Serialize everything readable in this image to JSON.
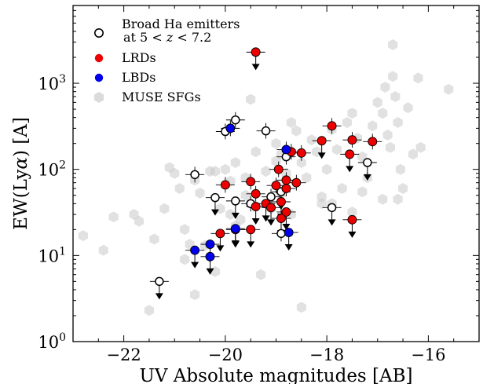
{
  "chart_data": {
    "type": "scatter",
    "xlabel": "UV Absolute magnitudes [AB]",
    "ylabel": "EW(Lyα) [A]",
    "xlim": [
      -23,
      -15
    ],
    "ylim": [
      1,
      8000
    ],
    "yscale": "log",
    "x_ticks": [
      -22,
      -20,
      -18,
      -16
    ],
    "x_tick_labels": [
      "−22",
      "−20",
      "−18",
      "−16"
    ],
    "y_ticks": [
      1,
      10,
      100,
      1000
    ],
    "y_tick_labels": [
      {
        "base": "10",
        "exp": "0"
      },
      {
        "base": "10",
        "exp": "1"
      },
      {
        "base": "10",
        "exp": "2"
      },
      {
        "base": "10",
        "exp": "3"
      }
    ],
    "legend_position": "top-left",
    "legend": [
      {
        "key": "broad",
        "line1": "Broad Ha emitters",
        "line2_prefix": "at 5 <",
        "line2_var": "z",
        "line2_suffix": "< 7.2"
      },
      {
        "key": "lrd",
        "label": "LRDs"
      },
      {
        "key": "lbd",
        "label": "LBDs"
      },
      {
        "key": "muse",
        "label": "MUSE SFGs"
      }
    ],
    "colors": {
      "lrd": "#ee0000",
      "lbd": "#0000ee",
      "muse": "#c8c8c8",
      "broad": "#000000"
    },
    "series": [
      {
        "key": "muse",
        "marker": "hexagon",
        "points": [
          [
            -22.8,
            17
          ],
          [
            -22.4,
            11.5
          ],
          [
            -21.8,
            30
          ],
          [
            -21.7,
            25
          ],
          [
            -21.5,
            2.3
          ],
          [
            -21.4,
            15.5
          ],
          [
            -21.2,
            35
          ],
          [
            -21.0,
            90
          ],
          [
            -20.8,
            20
          ],
          [
            -20.7,
            13.5
          ],
          [
            -20.6,
            3.5
          ],
          [
            -20.5,
            53
          ],
          [
            -20.4,
            13
          ],
          [
            -20.3,
            95
          ],
          [
            -20.2,
            6.5
          ],
          [
            -20.1,
            35
          ],
          [
            -20.0,
            100
          ],
          [
            -19.9,
            73
          ],
          [
            -19.8,
            120
          ],
          [
            -19.7,
            26
          ],
          [
            -19.6,
            80
          ],
          [
            -19.5,
            40
          ],
          [
            -19.4,
            160
          ],
          [
            -19.3,
            6
          ],
          [
            -19.2,
            95
          ],
          [
            -19.1,
            35
          ],
          [
            -19.0,
            200
          ],
          [
            -18.9,
            52
          ],
          [
            -18.8,
            90
          ],
          [
            -18.7,
            30
          ],
          [
            -18.6,
            280
          ],
          [
            -18.5,
            120
          ],
          [
            -18.4,
            80
          ],
          [
            -18.3,
            220
          ],
          [
            -18.2,
            160
          ],
          [
            -18.1,
            40
          ],
          [
            -18.0,
            100
          ],
          [
            -17.9,
            290
          ],
          [
            -17.8,
            170
          ],
          [
            -17.7,
            60
          ],
          [
            -17.6,
            350
          ],
          [
            -17.5,
            450
          ],
          [
            -17.4,
            230
          ],
          [
            -17.3,
            140
          ],
          [
            -17.2,
            80
          ],
          [
            -17.1,
            320
          ],
          [
            -17.0,
            600
          ],
          [
            -16.9,
            450
          ],
          [
            -16.85,
            900
          ],
          [
            -16.8,
            250
          ],
          [
            -16.75,
            180
          ],
          [
            -16.7,
            1200
          ],
          [
            -16.65,
            700
          ],
          [
            -16.6,
            350
          ],
          [
            -16.55,
            100
          ],
          [
            -16.5,
            60
          ],
          [
            -16.4,
            520
          ],
          [
            -16.3,
            150
          ],
          [
            -16.2,
            1150
          ],
          [
            -16.15,
            180
          ],
          [
            -15.6,
            850
          ],
          [
            -19.5,
            650
          ],
          [
            -18.5,
            2.5
          ],
          [
            -16.7,
            2800
          ],
          [
            -21.1,
            105
          ],
          [
            -20.9,
            60
          ],
          [
            -20.6,
            75
          ],
          [
            -20.2,
            95
          ],
          [
            -19.0,
            125
          ],
          [
            -18.1,
            48
          ],
          [
            -17.3,
            55
          ],
          [
            -16.9,
            45
          ],
          [
            -16.6,
            45
          ],
          [
            -19.9,
            30
          ],
          [
            -19.6,
            50
          ],
          [
            -18.9,
            150
          ],
          [
            -17.9,
            40
          ],
          [
            -17.5,
            32
          ],
          [
            -18.7,
            350
          ],
          [
            -19.8,
            22
          ],
          [
            -20.8,
            9
          ],
          [
            -22.2,
            28
          ]
        ]
      },
      {
        "key": "broad",
        "marker": "open-circle",
        "points": [
          {
            "x": -21.3,
            "y": 5,
            "upper": true
          },
          {
            "x": -20.6,
            "y": 87
          },
          {
            "x": -20.2,
            "y": 47,
            "upper": true
          },
          {
            "x": -20.0,
            "y": 275
          },
          {
            "x": -19.8,
            "y": 375
          },
          {
            "x": -19.8,
            "y": 43,
            "upper": true
          },
          {
            "x": -19.5,
            "y": 40
          },
          {
            "x": -19.2,
            "y": 280
          },
          {
            "x": -19.1,
            "y": 48
          },
          {
            "x": -18.9,
            "y": 55,
            "upper": true
          },
          {
            "x": -18.8,
            "y": 140
          },
          {
            "x": -18.9,
            "y": 18
          },
          {
            "x": -17.9,
            "y": 36,
            "upper": true
          },
          {
            "x": -17.2,
            "y": 120,
            "upper": true
          }
        ]
      },
      {
        "key": "lrd",
        "marker": "filled-circle",
        "points": [
          {
            "x": -19.4,
            "y": 2300,
            "upper": true
          },
          {
            "x": -20.1,
            "y": 18,
            "upper": true
          },
          {
            "x": -20.0,
            "y": 66
          },
          {
            "x": -19.8,
            "y": 20,
            "upper": true
          },
          {
            "x": -19.5,
            "y": 20,
            "upper": true
          },
          {
            "x": -19.5,
            "y": 72
          },
          {
            "x": -19.4,
            "y": 52
          },
          {
            "x": -19.4,
            "y": 37,
            "upper": true
          },
          {
            "x": -19.2,
            "y": 40,
            "upper": true
          },
          {
            "x": -19.1,
            "y": 36,
            "upper": true
          },
          {
            "x": -19.0,
            "y": 65
          },
          {
            "x": -18.95,
            "y": 100
          },
          {
            "x": -18.8,
            "y": 75
          },
          {
            "x": -18.8,
            "y": 60
          },
          {
            "x": -18.6,
            "y": 70
          },
          {
            "x": -18.8,
            "y": 32,
            "upper": true
          },
          {
            "x": -18.9,
            "y": 42,
            "upper": true
          },
          {
            "x": -18.9,
            "y": 27,
            "upper": true
          },
          {
            "x": -18.7,
            "y": 160
          },
          {
            "x": -18.5,
            "y": 155
          },
          {
            "x": -18.1,
            "y": 215,
            "upper": true
          },
          {
            "x": -17.9,
            "y": 320
          },
          {
            "x": -17.55,
            "y": 150,
            "upper": true
          },
          {
            "x": -17.5,
            "y": 220
          },
          {
            "x": -17.1,
            "y": 210
          },
          {
            "x": -17.5,
            "y": 26,
            "upper": true
          }
        ]
      },
      {
        "key": "lbd",
        "marker": "filled-circle",
        "points": [
          {
            "x": -20.6,
            "y": 11.5,
            "upper": true
          },
          {
            "x": -20.3,
            "y": 13.5,
            "upper": true
          },
          {
            "x": -20.3,
            "y": 9.7,
            "upper": true
          },
          {
            "x": -19.9,
            "y": 300
          },
          {
            "x": -19.8,
            "y": 20.5,
            "upper": true
          },
          {
            "x": -18.8,
            "y": 170
          },
          {
            "x": -18.75,
            "y": 18.5,
            "upper": true
          }
        ]
      }
    ]
  }
}
